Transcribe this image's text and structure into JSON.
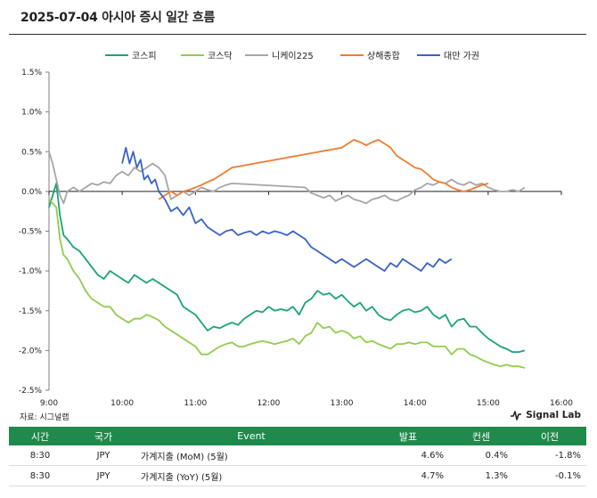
{
  "header": {
    "title": "2025-07-04 아시아 증시 일간 흐름"
  },
  "footer": {
    "source": "자료: 시그널랩",
    "brand": "Signal Lab"
  },
  "table": {
    "headers": [
      "시간",
      "국가",
      "Event",
      "발표",
      "컨센",
      "이전"
    ],
    "rows": [
      [
        "8:30",
        "JPY",
        "가계지출 (MoM) (5월)",
        "4.6%",
        "0.4%",
        "-1.8%"
      ],
      [
        "8:30",
        "JPY",
        "가계지출 (YoY) (5월)",
        "4.7%",
        "1.3%",
        "-0.1%"
      ]
    ]
  },
  "colors": {
    "kospi": "#1aa37a",
    "kosdaq": "#92cc4c",
    "nikkei": "#a6a6a6",
    "shanghai": "#ed7d31",
    "taiwan": "#3a62c4",
    "table_header": "#1f8a4c"
  },
  "chart_data": {
    "type": "line",
    "x_unit": "time",
    "xlim": [
      "9:00",
      "16:00"
    ],
    "xticks": [
      "9:00",
      "10:00",
      "11:00",
      "12:00",
      "13:00",
      "14:00",
      "15:00",
      "16:00"
    ],
    "ylim": [
      -2.5,
      1.5
    ],
    "yticks": [
      "1.5%",
      "1.0%",
      "0.5%",
      "0.0%",
      "-0.5%",
      "-1.0%",
      "-1.5%",
      "-2.0%",
      "-2.5%"
    ],
    "legend_position": "top",
    "series": [
      {
        "name": "코스피",
        "color": "#1aa37a",
        "x": [
          "9:00",
          "9:03",
          "9:06",
          "9:09",
          "9:12",
          "9:15",
          "9:20",
          "9:25",
          "9:30",
          "9:35",
          "9:40",
          "9:45",
          "9:50",
          "9:55",
          "10:00",
          "10:05",
          "10:10",
          "10:15",
          "10:20",
          "10:25",
          "10:30",
          "10:35",
          "10:40",
          "10:45",
          "10:50",
          "10:55",
          "11:00",
          "11:05",
          "11:10",
          "11:15",
          "11:20",
          "11:25",
          "11:30",
          "11:35",
          "11:40",
          "11:45",
          "11:50",
          "11:55",
          "12:00",
          "12:05",
          "12:10",
          "12:15",
          "12:20",
          "12:25",
          "12:30",
          "12:35",
          "12:40",
          "12:45",
          "12:50",
          "12:55",
          "13:00",
          "13:05",
          "13:10",
          "13:15",
          "13:20",
          "13:25",
          "13:30",
          "13:35",
          "13:40",
          "13:45",
          "13:50",
          "13:55",
          "14:00",
          "14:05",
          "14:10",
          "14:15",
          "14:20",
          "14:25",
          "14:30",
          "14:35",
          "14:40",
          "14:45",
          "14:50",
          "14:55",
          "15:00",
          "15:05",
          "15:10",
          "15:15",
          "15:20",
          "15:25",
          "15:30"
        ],
        "values": [
          -0.2,
          -0.05,
          0.1,
          -0.3,
          -0.55,
          -0.6,
          -0.7,
          -0.75,
          -0.85,
          -0.95,
          -1.05,
          -1.1,
          -1.0,
          -1.05,
          -1.1,
          -1.15,
          -1.05,
          -1.1,
          -1.15,
          -1.1,
          -1.15,
          -1.2,
          -1.25,
          -1.3,
          -1.45,
          -1.5,
          -1.55,
          -1.65,
          -1.75,
          -1.7,
          -1.72,
          -1.68,
          -1.65,
          -1.68,
          -1.6,
          -1.55,
          -1.5,
          -1.52,
          -1.45,
          -1.5,
          -1.48,
          -1.5,
          -1.45,
          -1.55,
          -1.4,
          -1.35,
          -1.25,
          -1.3,
          -1.28,
          -1.35,
          -1.3,
          -1.38,
          -1.45,
          -1.4,
          -1.5,
          -1.45,
          -1.55,
          -1.6,
          -1.62,
          -1.55,
          -1.5,
          -1.48,
          -1.52,
          -1.5,
          -1.45,
          -1.55,
          -1.6,
          -1.55,
          -1.7,
          -1.62,
          -1.6,
          -1.7,
          -1.7,
          -1.78,
          -1.85,
          -1.9,
          -1.95,
          -1.98,
          -2.02,
          -2.02,
          -2.0
        ]
      },
      {
        "name": "코스닥",
        "color": "#92cc4c",
        "x": [
          "9:00",
          "9:03",
          "9:06",
          "9:09",
          "9:12",
          "9:15",
          "9:20",
          "9:25",
          "9:30",
          "9:35",
          "9:40",
          "9:45",
          "9:50",
          "9:55",
          "10:00",
          "10:05",
          "10:10",
          "10:15",
          "10:20",
          "10:25",
          "10:30",
          "10:35",
          "10:40",
          "10:45",
          "10:50",
          "10:55",
          "11:00",
          "11:05",
          "11:10",
          "11:15",
          "11:20",
          "11:25",
          "11:30",
          "11:35",
          "11:40",
          "11:45",
          "11:50",
          "11:55",
          "12:00",
          "12:05",
          "12:10",
          "12:15",
          "12:20",
          "12:25",
          "12:30",
          "12:35",
          "12:40",
          "12:45",
          "12:50",
          "12:55",
          "13:00",
          "13:05",
          "13:10",
          "13:15",
          "13:20",
          "13:25",
          "13:30",
          "13:35",
          "13:40",
          "13:45",
          "13:50",
          "13:55",
          "14:00",
          "14:05",
          "14:10",
          "14:15",
          "14:20",
          "14:25",
          "14:30",
          "14:35",
          "14:40",
          "14:45",
          "14:50",
          "14:55",
          "15:00",
          "15:05",
          "15:10",
          "15:15",
          "15:20",
          "15:25",
          "15:30"
        ],
        "values": [
          -0.1,
          -0.15,
          -0.2,
          -0.6,
          -0.8,
          -0.85,
          -1.0,
          -1.1,
          -1.25,
          -1.35,
          -1.4,
          -1.45,
          -1.45,
          -1.55,
          -1.6,
          -1.65,
          -1.6,
          -1.6,
          -1.55,
          -1.58,
          -1.62,
          -1.7,
          -1.75,
          -1.8,
          -1.85,
          -1.9,
          -1.95,
          -2.05,
          -2.05,
          -2.0,
          -1.95,
          -1.92,
          -1.9,
          -1.95,
          -1.95,
          -1.92,
          -1.9,
          -1.88,
          -1.9,
          -1.92,
          -1.9,
          -1.88,
          -1.85,
          -1.92,
          -1.82,
          -1.78,
          -1.65,
          -1.72,
          -1.7,
          -1.78,
          -1.75,
          -1.78,
          -1.85,
          -1.82,
          -1.9,
          -1.88,
          -1.92,
          -1.95,
          -1.98,
          -1.92,
          -1.92,
          -1.9,
          -1.92,
          -1.9,
          -1.9,
          -1.95,
          -1.95,
          -1.95,
          -2.05,
          -1.98,
          -1.98,
          -2.05,
          -2.08,
          -2.12,
          -2.15,
          -2.18,
          -2.2,
          -2.18,
          -2.2,
          -2.2,
          -2.22
        ]
      },
      {
        "name": "니케이225",
        "color": "#a6a6a6",
        "x": [
          "9:00",
          "9:03",
          "9:06",
          "9:09",
          "9:12",
          "9:15",
          "9:20",
          "9:25",
          "9:30",
          "9:35",
          "9:40",
          "9:45",
          "9:50",
          "9:55",
          "10:00",
          "10:05",
          "10:10",
          "10:15",
          "10:20",
          "10:25",
          "10:30",
          "10:35",
          "10:40",
          "10:45",
          "10:50",
          "10:55",
          "11:00",
          "11:05",
          "11:10",
          "11:15",
          "11:20",
          "11:25",
          "11:30",
          "12:30",
          "12:35",
          "12:40",
          "12:45",
          "12:50",
          "12:55",
          "13:00",
          "13:05",
          "13:10",
          "13:15",
          "13:20",
          "13:25",
          "13:30",
          "13:35",
          "13:40",
          "13:45",
          "13:50",
          "13:55",
          "14:00",
          "14:05",
          "14:10",
          "14:15",
          "14:20",
          "14:25",
          "14:30",
          "14:35",
          "14:40",
          "14:45",
          "14:50",
          "14:55",
          "15:00",
          "15:05",
          "15:10",
          "15:15",
          "15:20",
          "15:25",
          "15:30"
        ],
        "values": [
          0.5,
          0.35,
          0.15,
          -0.05,
          -0.15,
          0.0,
          0.05,
          0.0,
          0.05,
          0.1,
          0.08,
          0.12,
          0.1,
          0.2,
          0.25,
          0.2,
          0.3,
          0.25,
          0.3,
          0.35,
          0.3,
          0.2,
          -0.1,
          -0.05,
          0.0,
          -0.05,
          0.0,
          0.05,
          0.02,
          0.0,
          0.05,
          0.08,
          0.1,
          0.05,
          -0.02,
          -0.05,
          -0.08,
          -0.05,
          -0.12,
          -0.08,
          -0.05,
          -0.1,
          -0.12,
          -0.15,
          -0.1,
          -0.08,
          -0.05,
          -0.1,
          -0.12,
          -0.08,
          -0.05,
          0.02,
          0.05,
          0.1,
          0.08,
          0.12,
          0.1,
          0.15,
          0.1,
          0.08,
          0.12,
          0.08,
          0.1,
          0.05,
          0.02,
          0.0,
          0.0,
          0.02,
          0.0,
          0.05
        ]
      },
      {
        "name": "상해종합",
        "color": "#ed7d31",
        "x": [
          "10:30",
          "10:35",
          "10:40",
          "10:45",
          "10:50",
          "10:55",
          "11:00",
          "11:05",
          "11:10",
          "11:15",
          "11:20",
          "11:25",
          "11:30",
          "13:00",
          "13:05",
          "13:10",
          "13:15",
          "13:20",
          "13:25",
          "13:30",
          "13:35",
          "13:40",
          "13:45",
          "13:50",
          "13:55",
          "14:00",
          "14:05",
          "14:10",
          "14:15",
          "14:20",
          "14:25",
          "14:30",
          "14:35",
          "14:40",
          "14:45",
          "14:50",
          "14:55",
          "15:00"
        ],
        "values": [
          -0.1,
          -0.05,
          0.0,
          -0.05,
          0.0,
          0.02,
          0.05,
          0.08,
          0.12,
          0.15,
          0.2,
          0.25,
          0.3,
          0.55,
          0.6,
          0.65,
          0.62,
          0.58,
          0.62,
          0.65,
          0.6,
          0.55,
          0.45,
          0.4,
          0.35,
          0.3,
          0.28,
          0.22,
          0.15,
          0.12,
          0.1,
          0.05,
          0.02,
          0.0,
          0.02,
          0.05,
          0.08,
          0.1
        ]
      },
      {
        "name": "대만 가권",
        "color": "#3a62c4",
        "x": [
          "10:00",
          "10:03",
          "10:06",
          "10:09",
          "10:12",
          "10:15",
          "10:18",
          "10:21",
          "10:24",
          "10:27",
          "10:30",
          "10:35",
          "10:40",
          "10:45",
          "10:50",
          "10:55",
          "11:00",
          "11:05",
          "11:10",
          "11:15",
          "11:20",
          "11:25",
          "11:30",
          "11:35",
          "11:40",
          "11:45",
          "11:50",
          "11:55",
          "12:00",
          "12:05",
          "12:10",
          "12:15",
          "12:20",
          "12:25",
          "12:30",
          "12:35",
          "12:40",
          "12:45",
          "12:50",
          "12:55",
          "13:00",
          "13:05",
          "13:10",
          "13:15",
          "13:20",
          "13:25",
          "13:30",
          "13:35",
          "13:40",
          "13:45",
          "13:50",
          "13:55",
          "14:00",
          "14:05",
          "14:10",
          "14:15",
          "14:20",
          "14:25",
          "14:30"
        ],
        "values": [
          0.35,
          0.55,
          0.35,
          0.5,
          0.3,
          0.4,
          0.15,
          0.2,
          0.1,
          0.15,
          0.0,
          -0.1,
          -0.25,
          -0.2,
          -0.3,
          -0.2,
          -0.4,
          -0.35,
          -0.45,
          -0.5,
          -0.55,
          -0.5,
          -0.48,
          -0.55,
          -0.52,
          -0.5,
          -0.55,
          -0.5,
          -0.53,
          -0.5,
          -0.52,
          -0.55,
          -0.5,
          -0.55,
          -0.6,
          -0.7,
          -0.75,
          -0.8,
          -0.85,
          -0.9,
          -0.85,
          -0.9,
          -0.95,
          -0.9,
          -0.85,
          -0.9,
          -0.95,
          -1.0,
          -0.9,
          -0.95,
          -0.85,
          -0.9,
          -0.95,
          -1.0,
          -0.9,
          -0.95,
          -0.85,
          -0.9,
          -0.85
        ]
      }
    ]
  }
}
